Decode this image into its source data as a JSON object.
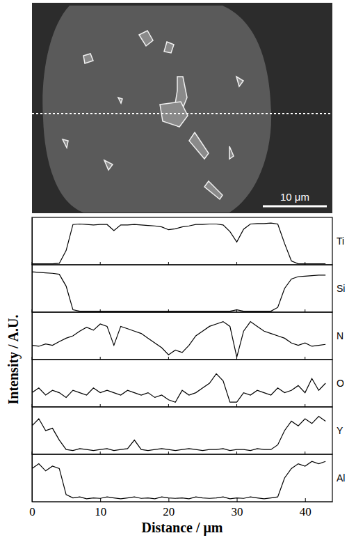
{
  "chart_data": {
    "type": "line",
    "xlabel": "Distance / μm",
    "ylabel": "Intensity / A.U.",
    "x": [
      0,
      1,
      2,
      3,
      4,
      5,
      6,
      7,
      8,
      9,
      10,
      11,
      12,
      13,
      14,
      15,
      16,
      17,
      18,
      19,
      20,
      21,
      22,
      23,
      24,
      25,
      26,
      27,
      28,
      29,
      30,
      31,
      32,
      33,
      34,
      35,
      36,
      37,
      38,
      39,
      40,
      41,
      42,
      43
    ],
    "xlim": [
      0,
      44
    ],
    "xticks": [
      0,
      10,
      20,
      30,
      40
    ],
    "ylim": [
      0,
      1
    ],
    "tick_labels": "x",
    "series": [
      {
        "name": "Ti",
        "color": "#000000",
        "values": [
          0.02,
          0.02,
          0.02,
          0.02,
          0.03,
          0.3,
          0.85,
          0.86,
          0.85,
          0.84,
          0.85,
          0.85,
          0.72,
          0.84,
          0.84,
          0.85,
          0.84,
          0.83,
          0.82,
          0.8,
          0.74,
          0.76,
          0.8,
          0.82,
          0.85,
          0.85,
          0.86,
          0.86,
          0.84,
          0.7,
          0.48,
          0.75,
          0.86,
          0.87,
          0.87,
          0.88,
          0.86,
          0.45,
          0.08,
          0.02,
          0.02,
          0.02,
          0.02,
          0.02
        ]
      },
      {
        "name": "Si",
        "color": "#000000",
        "values": [
          0.85,
          0.84,
          0.83,
          0.82,
          0.8,
          0.55,
          0.05,
          0.02,
          0.02,
          0.02,
          0.02,
          0.02,
          0.02,
          0.02,
          0.02,
          0.02,
          0.02,
          0.02,
          0.02,
          0.02,
          0.02,
          0.02,
          0.02,
          0.02,
          0.02,
          0.02,
          0.02,
          0.02,
          0.02,
          0.02,
          0.05,
          0.02,
          0.02,
          0.02,
          0.02,
          0.02,
          0.1,
          0.5,
          0.7,
          0.75,
          0.76,
          0.77,
          0.78,
          0.78
        ]
      },
      {
        "name": "N",
        "color": "#000000",
        "values": [
          0.3,
          0.28,
          0.33,
          0.3,
          0.38,
          0.45,
          0.5,
          0.6,
          0.68,
          0.62,
          0.75,
          0.7,
          0.3,
          0.7,
          0.65,
          0.6,
          0.55,
          0.45,
          0.35,
          0.25,
          0.1,
          0.2,
          0.15,
          0.3,
          0.5,
          0.6,
          0.7,
          0.75,
          0.8,
          0.7,
          0.05,
          0.6,
          0.8,
          0.7,
          0.6,
          0.55,
          0.5,
          0.45,
          0.35,
          0.3,
          0.35,
          0.28,
          0.3,
          0.32
        ]
      },
      {
        "name": "O",
        "color": "#000000",
        "values": [
          0.3,
          0.4,
          0.25,
          0.35,
          0.3,
          0.2,
          0.35,
          0.3,
          0.25,
          0.4,
          0.3,
          0.35,
          0.3,
          0.25,
          0.35,
          0.3,
          0.25,
          0.3,
          0.2,
          0.25,
          0.15,
          0.1,
          0.35,
          0.25,
          0.3,
          0.4,
          0.5,
          0.7,
          0.55,
          0.1,
          0.1,
          0.3,
          0.25,
          0.35,
          0.3,
          0.25,
          0.4,
          0.3,
          0.35,
          0.45,
          0.3,
          0.6,
          0.35,
          0.5
        ]
      },
      {
        "name": "Y",
        "color": "#000000",
        "values": [
          0.6,
          0.75,
          0.5,
          0.55,
          0.3,
          0.1,
          0.08,
          0.12,
          0.1,
          0.08,
          0.1,
          0.12,
          0.08,
          0.1,
          0.12,
          0.3,
          0.1,
          0.08,
          0.1,
          0.12,
          0.1,
          0.08,
          0.1,
          0.12,
          0.1,
          0.08,
          0.1,
          0.1,
          0.12,
          0.08,
          0.1,
          0.1,
          0.08,
          0.12,
          0.1,
          0.1,
          0.2,
          0.5,
          0.7,
          0.6,
          0.75,
          0.65,
          0.8,
          0.7
        ]
      },
      {
        "name": "Al",
        "color": "#000000",
        "values": [
          0.7,
          0.8,
          0.65,
          0.75,
          0.7,
          0.15,
          0.08,
          0.1,
          0.06,
          0.08,
          0.07,
          0.1,
          0.08,
          0.06,
          0.08,
          0.1,
          0.07,
          0.08,
          0.06,
          0.1,
          0.08,
          0.07,
          0.08,
          0.06,
          0.1,
          0.08,
          0.07,
          0.08,
          0.1,
          0.06,
          0.08,
          0.07,
          0.1,
          0.08,
          0.06,
          0.08,
          0.1,
          0.5,
          0.7,
          0.8,
          0.75,
          0.85,
          0.8,
          0.85
        ]
      }
    ]
  },
  "micrograph": {
    "scale_bar_label": "10 μm"
  }
}
